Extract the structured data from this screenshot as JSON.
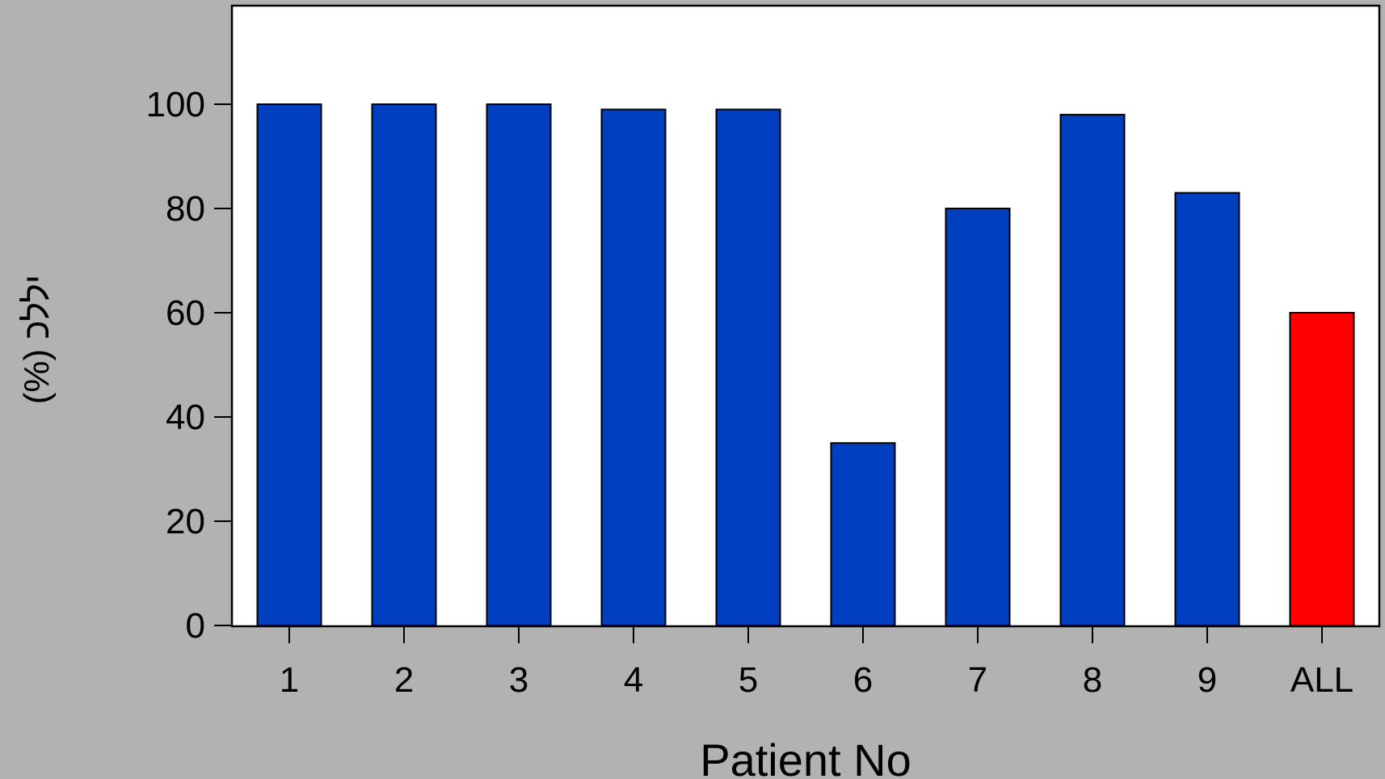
{
  "chart_data": {
    "type": "bar",
    "title": "",
    "xlabel": "Patient No",
    "ylabel": "(%) יללכ",
    "categories": [
      "1",
      "2",
      "3",
      "4",
      "5",
      "6",
      "7",
      "8",
      "9",
      "ALL"
    ],
    "values": [
      100,
      100,
      100,
      99,
      99,
      35,
      80,
      98,
      83,
      60
    ],
    "ylim": [
      0,
      118
    ],
    "yticks": [
      0,
      20,
      40,
      60,
      80,
      100
    ],
    "grid": false,
    "legend": "none",
    "bar_colors": [
      "#0040c0",
      "#0040c0",
      "#0040c0",
      "#0040c0",
      "#0040c0",
      "#0040c0",
      "#0040c0",
      "#0040c0",
      "#0040c0",
      "#ff0000"
    ]
  },
  "colors": {
    "background": "#b2b2b2",
    "plot_area": "#ffffff",
    "bar": "#0040c0",
    "highlight_bar": "#ff0000"
  }
}
